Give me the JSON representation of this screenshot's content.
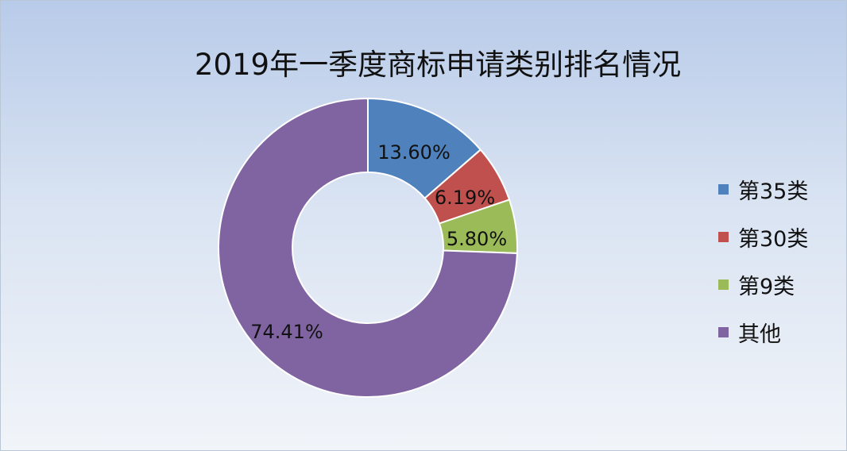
{
  "chart_data": {
    "type": "pie",
    "title": "2019年一季度商标申请类别排名情况",
    "categories": [
      "第35类",
      "第30类",
      "第9类",
      "其他"
    ],
    "values": [
      13.6,
      6.19,
      5.8,
      74.41
    ],
    "data_labels": [
      "13.60%",
      "6.19%",
      "5.80%",
      "74.41%"
    ],
    "colors": [
      "#4f81bd",
      "#c0504d",
      "#9bbb59",
      "#8064a2"
    ],
    "donut": true,
    "legend_position": "right"
  }
}
